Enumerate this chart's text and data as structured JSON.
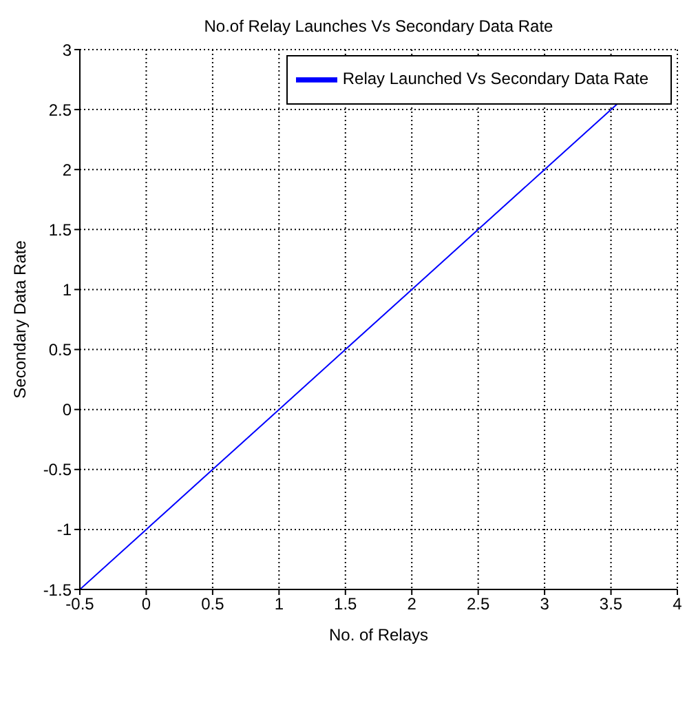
{
  "chart_data": {
    "type": "line",
    "title": "No.of Relay Launches Vs Secondary Data Rate",
    "xlabel": "No. of Relays",
    "ylabel": "Secondary Data Rate",
    "x": [
      -0.5,
      0,
      0.5,
      1,
      1.5,
      2,
      2.5,
      3,
      3.55
    ],
    "series": [
      {
        "name": "Relay Launched Vs Secondary Data Rate",
        "color": "#0000ff",
        "values": [
          -1.5,
          -1,
          -0.5,
          0,
          0.5,
          1,
          1.5,
          2,
          2.55
        ]
      }
    ],
    "xlim": [
      -0.5,
      4
    ],
    "xticks": [
      -0.5,
      0,
      0.5,
      1,
      1.5,
      2,
      2.5,
      3,
      3.5,
      4
    ],
    "ylim": [
      -1.5,
      3
    ],
    "yticks": [
      -1.5,
      -1,
      -0.5,
      0,
      0.5,
      1,
      1.5,
      2,
      2.5,
      3
    ],
    "grid": true,
    "legend": "top right",
    "marker": "none",
    "line_style": "solid"
  }
}
